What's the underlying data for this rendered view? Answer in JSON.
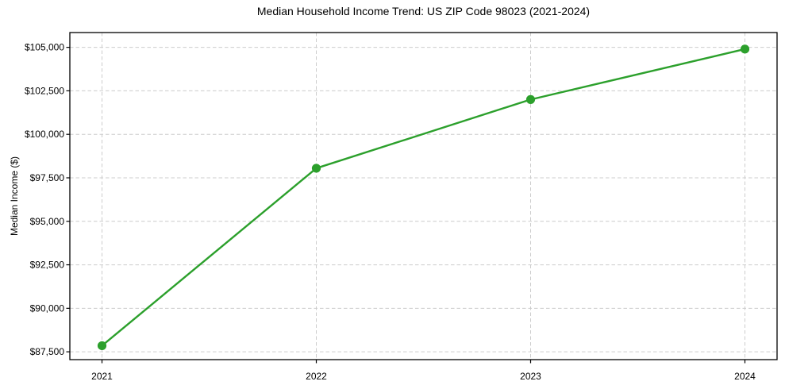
{
  "chart_data": {
    "type": "line",
    "title": "Median Household Income Trend: US ZIP Code 98023 (2021-2024)",
    "xlabel": "",
    "ylabel": "Median Income ($)",
    "x": [
      2021,
      2022,
      2023,
      2024
    ],
    "values": [
      87850,
      98050,
      102000,
      104900
    ],
    "xticks": {
      "values": [
        2021,
        2022,
        2023,
        2024
      ],
      "labels": [
        "2021",
        "2022",
        "2023",
        "2024"
      ]
    },
    "yticks": {
      "values": [
        87500,
        90000,
        92500,
        95000,
        97500,
        100000,
        102500,
        105000
      ],
      "labels": [
        "$87,500",
        "$90,000",
        "$92,500",
        "$95,000",
        "$97,500",
        "$100,000",
        "$102,500",
        "$105,000"
      ]
    },
    "xlim": [
      2020.85,
      2024.15
    ],
    "ylim": [
      87050,
      105850
    ],
    "grid": true,
    "grid_style": "dashed",
    "legend": false,
    "line_color": "#2ca02c",
    "marker": "circle",
    "marker_color": "#2ca02c",
    "grid_color": "#cccccc",
    "axis_color": "#000000",
    "text_color": "#000000",
    "background_color": "#ffffff"
  }
}
